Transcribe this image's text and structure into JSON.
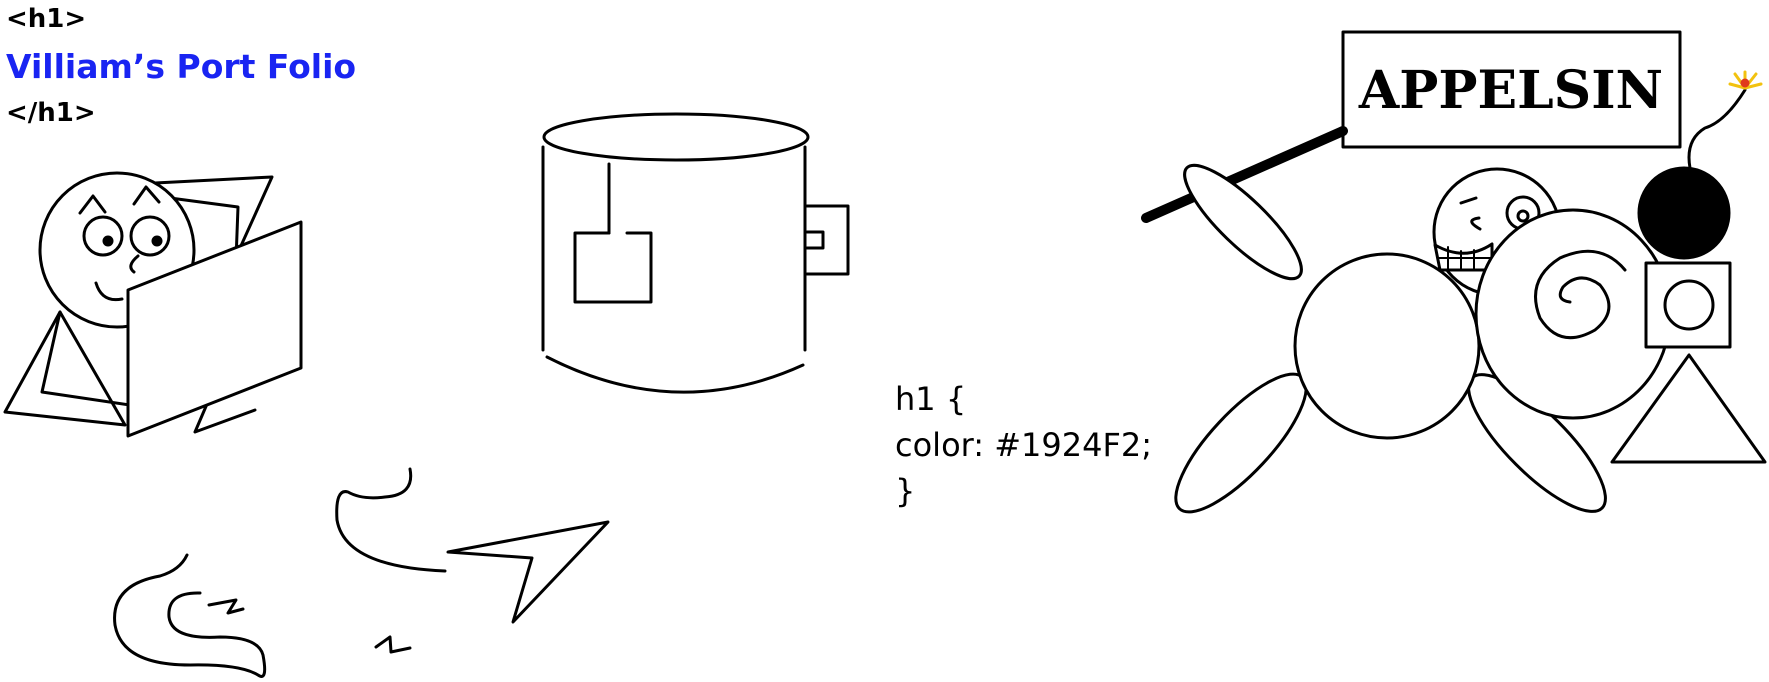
{
  "html_snippet": {
    "open_tag": "<h1>",
    "title": "Villiam’s Port Folio",
    "close_tag": "</h1>"
  },
  "css_snippet": {
    "selector_line": "h1 {",
    "property_line": "color: #1924F2;",
    "close_line": "}"
  },
  "sign": {
    "text": "APPELSIN"
  },
  "colors": {
    "title": "#1924F2",
    "ink": "#000000",
    "spark": "#f2c20f",
    "spark_accent": "#e03a1c"
  }
}
